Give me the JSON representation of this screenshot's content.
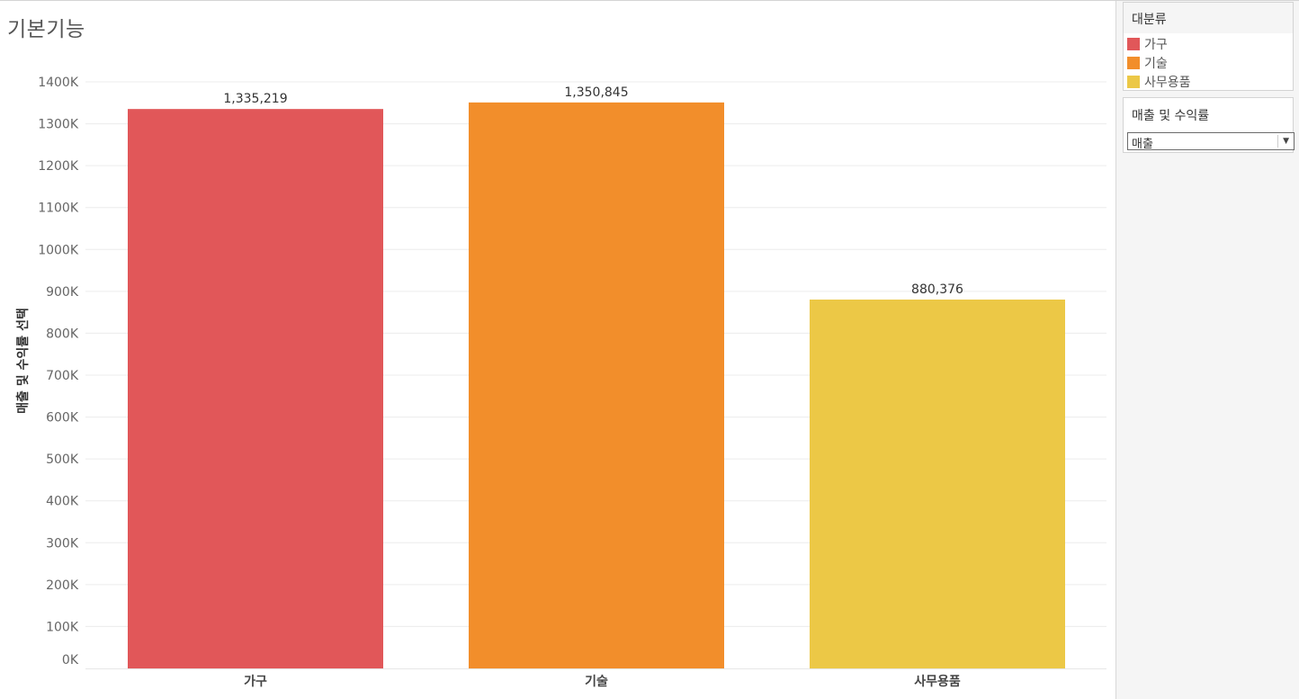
{
  "chart_data": {
    "type": "bar",
    "title": "기본기능",
    "ylabel": "매출 및 수익률 선택",
    "xlabel": "",
    "categories": [
      "가구",
      "기술",
      "사무용품"
    ],
    "values": [
      1335219,
      1350845,
      880376
    ],
    "data_labels": [
      "1,335,219",
      "1,350,845",
      "880,376"
    ],
    "colors": [
      "#e15759",
      "#f28e2b",
      "#ecc846"
    ],
    "ylim": [
      0,
      1400000
    ],
    "yticks": [
      0,
      100000,
      200000,
      300000,
      400000,
      500000,
      600000,
      700000,
      800000,
      900000,
      1000000,
      1100000,
      1200000,
      1300000,
      1400000
    ],
    "ytick_labels": [
      "0K",
      "100K",
      "200K",
      "300K",
      "400K",
      "500K",
      "600K",
      "700K",
      "800K",
      "900K",
      "1000K",
      "1100K",
      "1200K",
      "1300K",
      "1400K"
    ],
    "grid": true,
    "legend_position": "right"
  },
  "legend": {
    "title": "대분류",
    "items": [
      {
        "label": "가구",
        "color": "#e15759"
      },
      {
        "label": "기술",
        "color": "#f28e2b"
      },
      {
        "label": "사무용품",
        "color": "#ecc846"
      }
    ]
  },
  "parameter": {
    "title": "매출 및 수익률",
    "selected": "매출",
    "dropdown_icon": "chevron-down-icon"
  }
}
